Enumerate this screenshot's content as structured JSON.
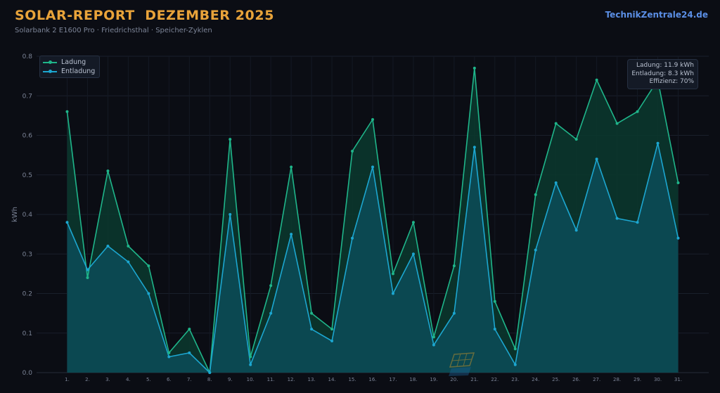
{
  "header": {
    "title": "SOLAR-REPORT  DEZEMBER 2025",
    "subtitle": "Solarbank 2 E1600 Pro · Friedrichsthal · Speicher-Zyklen",
    "brand": "TechnikZentrale24.de"
  },
  "stats": {
    "charge": "Ladung: 11.9 kWh",
    "discharge": "Entladung: 8.3 kWh",
    "efficiency": "Effizienz: 70%"
  },
  "colors": {
    "charge": "#1fb58a",
    "discharge": "#1ca6d0",
    "background": "#0b0d14",
    "accent": "#e8a33a"
  },
  "chart_data": {
    "type": "area",
    "title": "SOLAR-REPORT  DEZEMBER 2025",
    "ylabel": "kWh",
    "xlabel": "",
    "ylim": [
      0,
      0.8
    ],
    "yticks": [
      0.0,
      0.1,
      0.2,
      0.3,
      0.4,
      0.5,
      0.6,
      0.7,
      0.8
    ],
    "grid": true,
    "legend_position": "top-left",
    "categories": [
      "1.",
      "2.",
      "3.",
      "4.",
      "5.",
      "6.",
      "7.",
      "8.",
      "9.",
      "10.",
      "11.",
      "12.",
      "13.",
      "14.",
      "15.",
      "16.",
      "17.",
      "18.",
      "19.",
      "20.",
      "21.",
      "22.",
      "23.",
      "24.",
      "25.",
      "26.",
      "27.",
      "28.",
      "29.",
      "30.",
      "31."
    ],
    "series": [
      {
        "name": "Ladung",
        "values": [
          0.66,
          0.24,
          0.51,
          0.32,
          0.27,
          0.05,
          0.11,
          0.0,
          0.59,
          0.04,
          0.22,
          0.52,
          0.15,
          0.11,
          0.56,
          0.64,
          0.25,
          0.38,
          0.09,
          0.27,
          0.77,
          0.18,
          0.06,
          0.45,
          0.63,
          0.59,
          0.74,
          0.63,
          0.66,
          0.74,
          0.48
        ]
      },
      {
        "name": "Entladung",
        "values": [
          0.38,
          0.26,
          0.32,
          0.28,
          0.2,
          0.04,
          0.05,
          0.0,
          0.4,
          0.02,
          0.15,
          0.35,
          0.11,
          0.08,
          0.34,
          0.52,
          0.2,
          0.3,
          0.07,
          0.15,
          0.57,
          0.11,
          0.02,
          0.31,
          0.48,
          0.36,
          0.54,
          0.39,
          0.38,
          0.58,
          0.34
        ]
      }
    ]
  }
}
